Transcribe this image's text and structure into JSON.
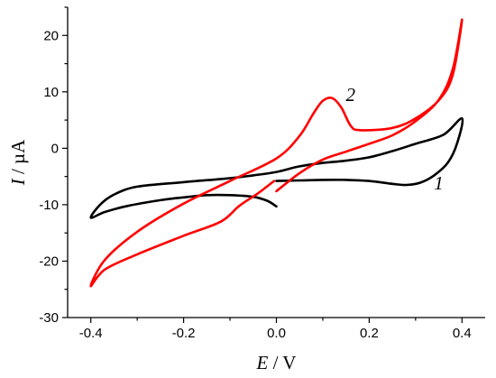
{
  "chart_data": {
    "type": "line",
    "title": "",
    "xlabel": {
      "var": "E",
      "unit": " / V"
    },
    "ylabel": {
      "var": "I",
      "unit": " / µA"
    },
    "xlim": [
      -0.45,
      0.45
    ],
    "ylim": [
      -30,
      25
    ],
    "xticks": [
      -0.4,
      -0.2,
      0.0,
      0.2,
      0.4
    ],
    "xtick_labels": [
      "-0.4",
      "-0.2",
      "0.0",
      "0.2",
      "0.4"
    ],
    "yticks": [
      -30,
      -20,
      -10,
      0,
      10,
      20
    ],
    "ytick_labels": [
      "-30",
      "-20",
      "-10",
      "0",
      "10",
      "20"
    ],
    "grid": false,
    "series": [
      {
        "name": "1",
        "color": "#000000",
        "points": [
          [
            0.0,
            -5.8
          ],
          [
            0.05,
            -5.7
          ],
          [
            0.1,
            -5.6
          ],
          [
            0.15,
            -5.6
          ],
          [
            0.2,
            -5.8
          ],
          [
            0.25,
            -6.3
          ],
          [
            0.28,
            -6.5
          ],
          [
            0.31,
            -6.1
          ],
          [
            0.34,
            -4.8
          ],
          [
            0.37,
            -2.5
          ],
          [
            0.39,
            1.0
          ],
          [
            0.4,
            5.3
          ],
          [
            0.36,
            2.4
          ],
          [
            0.3,
            0.8
          ],
          [
            0.25,
            -0.5
          ],
          [
            0.2,
            -1.6
          ],
          [
            0.15,
            -2.2
          ],
          [
            0.1,
            -2.6
          ],
          [
            0.05,
            -3.2
          ],
          [
            0.0,
            -4.2
          ],
          [
            -0.05,
            -4.8
          ],
          [
            -0.1,
            -5.3
          ],
          [
            -0.2,
            -6.0
          ],
          [
            -0.3,
            -6.8
          ],
          [
            -0.35,
            -8.2
          ],
          [
            -0.38,
            -10.0
          ],
          [
            -0.4,
            -12.3
          ],
          [
            -0.37,
            -11.3
          ],
          [
            -0.32,
            -10.2
          ],
          [
            -0.25,
            -9.2
          ],
          [
            -0.2,
            -8.7
          ],
          [
            -0.15,
            -8.3
          ],
          [
            -0.1,
            -8.3
          ],
          [
            -0.05,
            -8.6
          ],
          [
            -0.02,
            -9.3
          ],
          [
            0.0,
            -10.3
          ]
        ]
      },
      {
        "name": "2",
        "color": "#ff0000",
        "points": [
          [
            -0.005,
            -5.8
          ],
          [
            -0.04,
            -8.0
          ],
          [
            -0.08,
            -10.2
          ],
          [
            -0.12,
            -13.0
          ],
          [
            -0.2,
            -15.5
          ],
          [
            -0.3,
            -18.8
          ],
          [
            -0.37,
            -21.5
          ],
          [
            -0.4,
            -24.4
          ],
          [
            -0.37,
            -19.8
          ],
          [
            -0.3,
            -14.8
          ],
          [
            -0.2,
            -9.8
          ],
          [
            -0.1,
            -5.8
          ],
          [
            0.0,
            -1.8
          ],
          [
            0.05,
            2.2
          ],
          [
            0.08,
            6.2
          ],
          [
            0.1,
            8.4
          ],
          [
            0.12,
            8.9
          ],
          [
            0.14,
            7.2
          ],
          [
            0.16,
            4.0
          ],
          [
            0.18,
            3.2
          ],
          [
            0.25,
            3.6
          ],
          [
            0.3,
            5.3
          ],
          [
            0.35,
            8.5
          ],
          [
            0.38,
            13.0
          ],
          [
            0.4,
            22.8
          ],
          [
            0.38,
            14.0
          ],
          [
            0.35,
            8.6
          ],
          [
            0.3,
            4.8
          ],
          [
            0.25,
            2.3
          ],
          [
            0.2,
            0.8
          ],
          [
            0.15,
            -0.6
          ],
          [
            0.1,
            -2.0
          ],
          [
            0.05,
            -4.4
          ],
          [
            0.0,
            -7.6
          ]
        ]
      }
    ],
    "curve_labels": [
      {
        "text": "1",
        "x": 0.33,
        "y": -6.2
      },
      {
        "text": "2",
        "x": 0.14,
        "y": 9.5
      }
    ]
  }
}
